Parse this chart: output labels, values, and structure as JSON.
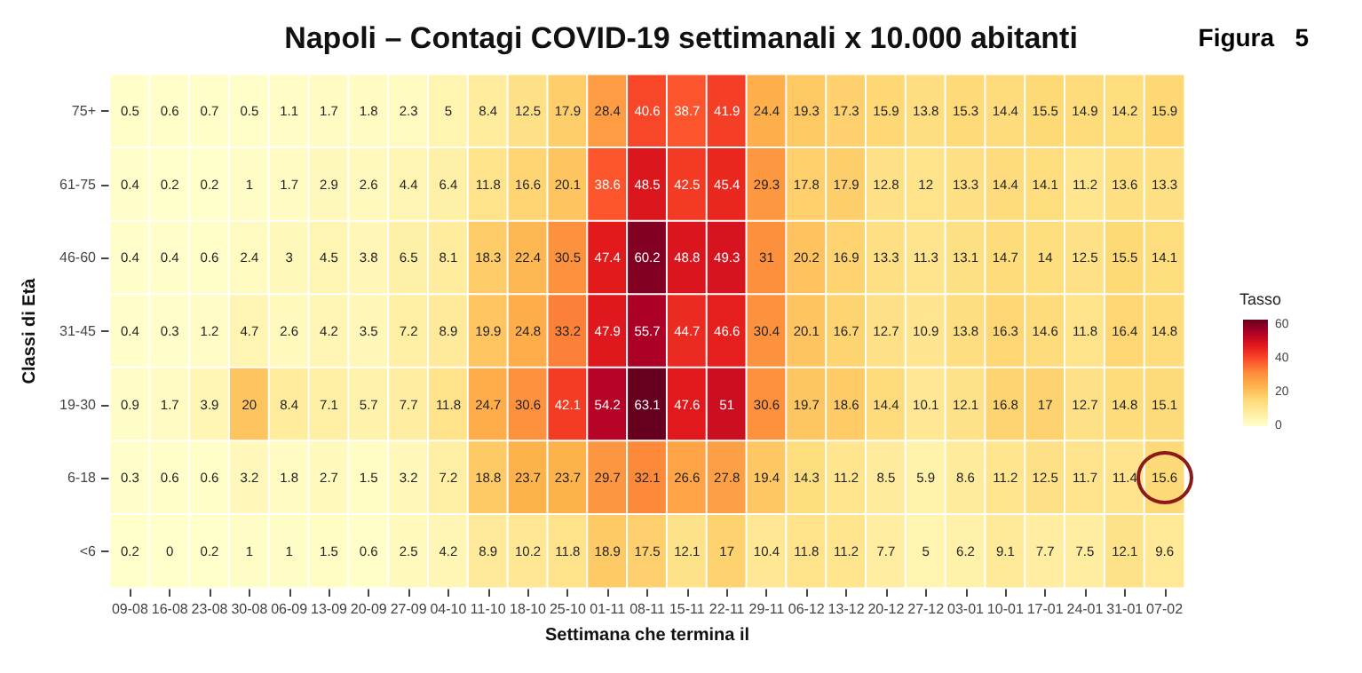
{
  "chart_data": {
    "type": "heatmap",
    "title": "Napoli – Contagi COVID-19 settimanali x 10.000 abitanti",
    "annotations": [
      "Figura   5"
    ],
    "xlabel": "Settimana che termina il",
    "ylabel": "Classi di Età",
    "clabel": "Tasso",
    "categories": [
      "09-08",
      "16-08",
      "23-08",
      "30-08",
      "06-09",
      "13-09",
      "20-09",
      "27-09",
      "04-10",
      "11-10",
      "18-10",
      "25-10",
      "01-11",
      "08-11",
      "15-11",
      "22-11",
      "29-11",
      "06-12",
      "13-12",
      "20-12",
      "27-12",
      "03-01",
      "10-01",
      "17-01",
      "24-01",
      "31-01",
      "07-02"
    ],
    "y_categories": [
      "75+",
      "61-75",
      "46-60",
      "31-45",
      "19-30",
      "6-18",
      "<6"
    ],
    "cells": [
      [
        0.5,
        0.6,
        0.7,
        0.5,
        1.1,
        1.7,
        1.8,
        2.3,
        5,
        8.4,
        12.5,
        17.9,
        28.4,
        40.6,
        38.7,
        41.9,
        24.4,
        19.3,
        17.3,
        15.9,
        13.8,
        15.3,
        14.4,
        15.5,
        14.9,
        14.2,
        15.9
      ],
      [
        0.4,
        0.2,
        0.2,
        1,
        1.7,
        2.9,
        2.6,
        4.4,
        6.4,
        11.8,
        16.6,
        20.1,
        38.6,
        48.5,
        42.5,
        45.4,
        29.3,
        17.8,
        17.9,
        12.8,
        12,
        13.3,
        14.4,
        14.1,
        11.2,
        13.6,
        13.3
      ],
      [
        0.4,
        0.4,
        0.6,
        2.4,
        3,
        4.5,
        3.8,
        6.5,
        8.1,
        18.3,
        22.4,
        30.5,
        47.4,
        60.2,
        48.8,
        49.3,
        31,
        20.2,
        16.9,
        13.3,
        11.3,
        13.1,
        14.7,
        14,
        12.5,
        15.5,
        14.1
      ],
      [
        0.4,
        0.3,
        1.2,
        4.7,
        2.6,
        4.2,
        3.5,
        7.2,
        8.9,
        19.9,
        24.8,
        33.2,
        47.9,
        55.7,
        44.7,
        46.6,
        30.4,
        20.1,
        16.7,
        12.7,
        10.9,
        13.8,
        16.3,
        14.6,
        11.8,
        16.4,
        14.8
      ],
      [
        0.9,
        1.7,
        3.9,
        20,
        8.4,
        7.1,
        5.7,
        7.7,
        11.8,
        24.7,
        30.6,
        42.1,
        54.2,
        63.1,
        47.6,
        51,
        30.6,
        19.7,
        18.6,
        14.4,
        10.1,
        12.1,
        16.8,
        17,
        12.7,
        14.8,
        15.1
      ],
      [
        0.3,
        0.6,
        0.6,
        3.2,
        1.8,
        2.7,
        1.5,
        3.2,
        7.2,
        18.8,
        23.7,
        23.7,
        29.7,
        32.1,
        26.6,
        27.8,
        19.4,
        14.3,
        11.2,
        8.5,
        5.9,
        8.6,
        11.2,
        12.5,
        11.7,
        11.4,
        15.6
      ],
      [
        0.2,
        0,
        0.2,
        1,
        1,
        1.5,
        0.6,
        2.5,
        4.2,
        8.9,
        10.2,
        11.8,
        18.9,
        17.5,
        12.1,
        17,
        10.4,
        11.8,
        11.2,
        7.7,
        5,
        6.2,
        9.1,
        7.7,
        7.5,
        12.1,
        9.6
      ]
    ],
    "data_labels": true,
    "clim": [
      0,
      63.1
    ],
    "cticks": [
      0,
      20,
      40,
      60
    ]
  }
}
